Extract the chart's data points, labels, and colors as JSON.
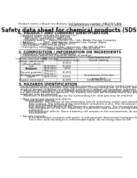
{
  "bg_color": "#ffffff",
  "text_color": "#111111",
  "header_left": "Product name: Lithium Ion Battery Cell",
  "header_right_line1": "Substance number: HAF2007-90S",
  "header_right_line2": "Establishment / Revision: Dec.1.2016",
  "title": "Safety data sheet for chemical products (SDS)",
  "s1_title": "1. PRODUCT AND COMPANY IDENTIFICATION",
  "s1_lines": [
    "  • Product name: Lithium Ion Battery Cell",
    "  • Product code: Cylindrical-type cell",
    "       IMR18650, IMR18650L, IMR18650A",
    "  • Company name:    Sanyo Electric Co., Ltd., Mobile Energy Company",
    "  • Address:          2001, Kamikaizen, Sumoto City, Hyogo, Japan",
    "  • Telephone number:  +81-799-26-4111",
    "  • Fax number: +81-799-26-4129",
    "  • Emergency telephone number (daytime): +81-799-26-3962",
    "                                 (Night and holiday): +81-799-26-4129"
  ],
  "s2_title": "2. COMPOSITION / INFORMATION ON INGREDIENTS",
  "s2_pre_lines": [
    "  • Substance or preparation: Preparation",
    "  • Information about the chemical nature of product:"
  ],
  "table_col_headers": [
    "Common chemical name",
    "CAS number",
    "Concentration /\nConcentration range",
    "Classification and\nhazard labeling"
  ],
  "table_rows": [
    [
      "Lithium cobalt oxide\n(LiMnxCoxNiO2)",
      "-",
      "30-60%",
      "-"
    ],
    [
      "Iron",
      "7439-89-6",
      "10-20%",
      "-"
    ],
    [
      "Aluminum",
      "7429-90-5",
      "2-5%",
      "-"
    ],
    [
      "Graphite\n(Natural graphite)\n(Artificial graphite)",
      "7782-42-5\n7782-44-2",
      "10-20%",
      "-"
    ],
    [
      "Copper",
      "7440-50-8",
      "5-15%",
      "Sensitization of the skin\ngroup No.2"
    ],
    [
      "Organic electrolyte",
      "-",
      "10-20%",
      "Inflammable liquid"
    ]
  ],
  "s3_title": "3. HAZARDS IDENTIFICATION",
  "s3_lines": [
    "  For the battery cell, chemical materials are stored in a hermetically-sealed metal case, designed to withstand",
    "  temperatures during portable-type applications. During normal use, as a result, during normal-use, there is no",
    "  physical danger of ignition or explosion and there is danger of hazardous materials leakage.",
    "      However, if exposed to a fire, added mechanical shocks, decomposed, when electro-mechanical forces-use,",
    "  the gas inside cannot be operated. The battery cell case will be breached of fire-patterns. Hazardous",
    "  materials may be released.",
    "      Moreover, if heated strongly by the surrounding fire, soot gas may be emitted.",
    "",
    "  • Most important hazard and effects:",
    "       Human health effects:",
    "            Inhalation: The release of the electrolyte has an anesthetic action and stimulates a respiratory tract.",
    "            Skin contact: The release of the electrolyte stimulates a skin. The electrolyte skin contact causes a",
    "            sore and stimulation on the skin.",
    "            Eye contact: The release of the electrolyte stimulates eyes. The electrolyte eye contact causes a sore",
    "            and stimulation on the eye. Especially, a substance that causes a strong inflammation of the eye is",
    "            contained.",
    "            Environmental effects: Since a battery cell remains in the environment, do not throw out it into the",
    "            environment.",
    "",
    "  • Specific hazards:",
    "            If the electrolyte contacts with water, it will generate detrimental hydrogen fluoride.",
    "            Since the used electrolyte is inflammable liquid, do not bring close to fire."
  ],
  "hdr_fs": 3.0,
  "title_fs": 5.5,
  "sec_title_fs": 3.8,
  "body_fs": 2.9,
  "tbl_fs": 2.6
}
